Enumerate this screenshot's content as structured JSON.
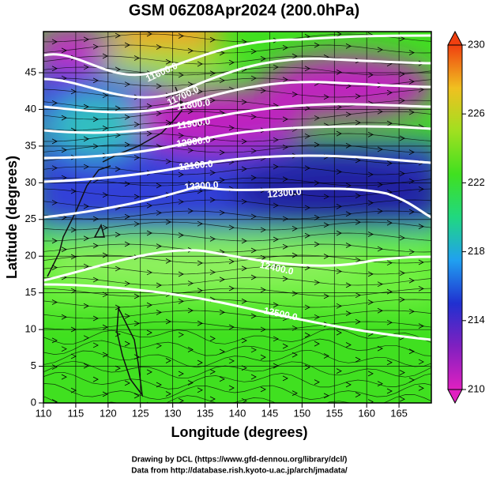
{
  "chart_data": {
    "type": "map",
    "title": "GSM 06Z08Apr2024 (200.0hPa)",
    "x_label": "Longitude (degrees)",
    "y_label": "Latitude  (degrees)",
    "xlim": [
      110,
      170
    ],
    "ylim": [
      0,
      50.6
    ],
    "xticks": [
      110,
      115,
      120,
      125,
      130,
      135,
      140,
      145,
      150,
      155,
      160,
      165
    ],
    "yticks": [
      0,
      5,
      10,
      15,
      20,
      25,
      30,
      35,
      40,
      45
    ],
    "grid": true,
    "colorbar": {
      "clim": [
        210,
        230
      ],
      "ticks": [
        210,
        214,
        218,
        222,
        226,
        230
      ],
      "colors": [
        "#e020c0",
        "#8020c0",
        "#2030d0",
        "#20a0f0",
        "#20d880",
        "#40e020",
        "#a0e020",
        "#f0c020",
        "#f04010"
      ]
    },
    "contour_labels": [
      "11600.0",
      "11700.0",
      "11800.0",
      "11900.0",
      "12000.0",
      "12100.0",
      "12200.0",
      "12300.0",
      "12400.0",
      "12500.0"
    ],
    "credits": [
      "Drawing by DCL (https://www.gfd-dennou.org/library/dcl/)",
      "Data from http://database.rish.kyoto-u.ac.jp/arch/jmadata/"
    ]
  }
}
